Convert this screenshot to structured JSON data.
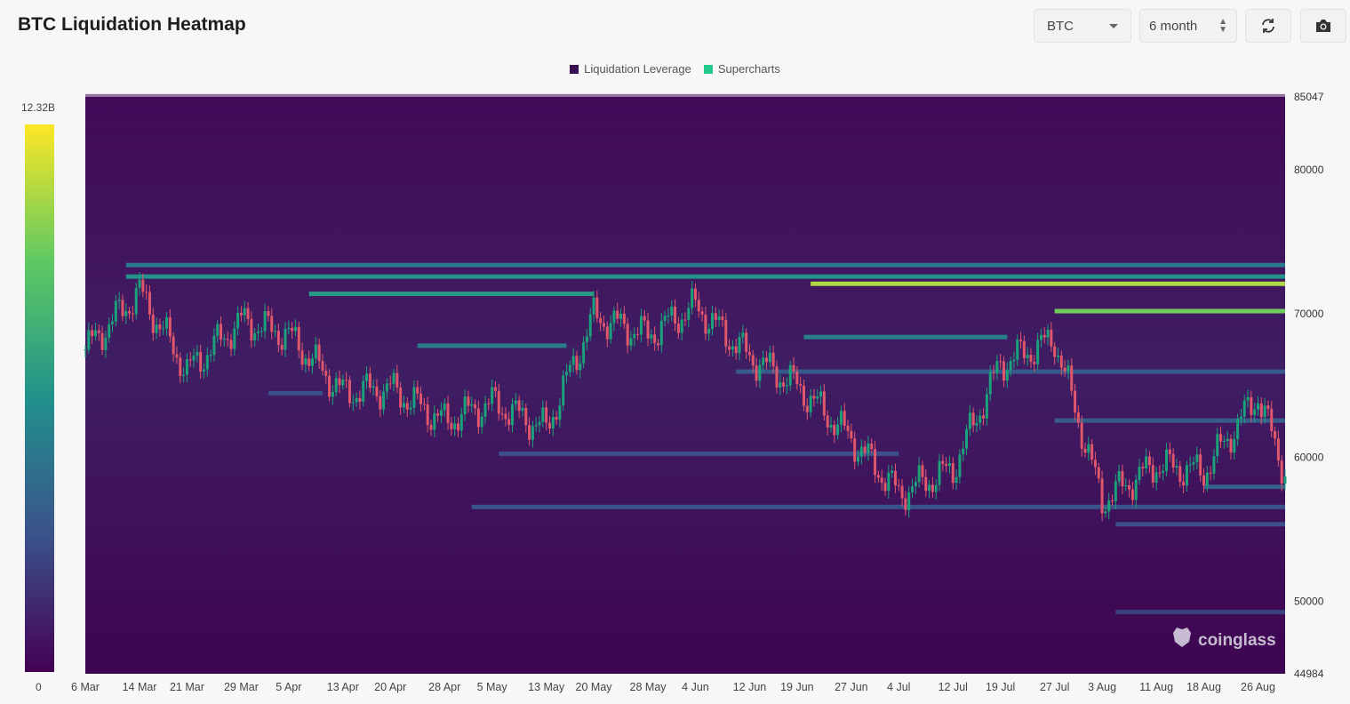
{
  "header": {
    "title": "BTC Liquidation Heatmap",
    "symbol_select": "BTC",
    "range_select": "6 month",
    "refresh_icon": "refresh-icon",
    "camera_icon": "camera-icon"
  },
  "legend": [
    {
      "label": "Liquidation Leverage",
      "color": "#3a0f52"
    },
    {
      "label": "Supercharts",
      "color": "#22c98a"
    }
  ],
  "color_scale": {
    "max_label": "12.32B",
    "min_label": "0"
  },
  "watermark": "coinglass",
  "chart_data": {
    "type": "heatmap",
    "title": "BTC Liquidation Heatmap",
    "ylim": [
      44984,
      85047
    ],
    "ytick_labels": [
      "85047",
      "80000",
      "70000",
      "60000",
      "50000",
      "44984"
    ],
    "yticks": [
      85047,
      80000,
      70000,
      60000,
      50000,
      44984
    ],
    "xtick_labels": [
      "6 Mar",
      "14 Mar",
      "21 Mar",
      "29 Mar",
      "5 Apr",
      "13 Apr",
      "20 Apr",
      "28 Apr",
      "5 May",
      "13 May",
      "20 May",
      "28 May",
      "4 Jun",
      "12 Jun",
      "19 Jun",
      "27 Jun",
      "4 Jul",
      "12 Jul",
      "19 Jul",
      "27 Jul",
      "3 Aug",
      "11 Aug",
      "18 Aug",
      "26 Aug"
    ],
    "colorscale": [
      "#440154",
      "#3b528b",
      "#21918c",
      "#5ec962",
      "#fde725"
    ],
    "heat_max": 12.32,
    "price_series": {
      "name": "Supercharts",
      "dates": [
        "6 Mar",
        "14 Mar",
        "21 Mar",
        "29 Mar",
        "5 Apr",
        "13 Apr",
        "20 Apr",
        "28 Apr",
        "5 May",
        "13 May",
        "20 May",
        "28 May",
        "4 Jun",
        "12 Jun",
        "19 Jun",
        "27 Jun",
        "4 Jul",
        "12 Jul",
        "19 Jul",
        "27 Jul",
        "3 Aug",
        "11 Aug",
        "18 Aug",
        "26 Aug",
        "30 Aug"
      ],
      "close": [
        67500,
        71500,
        66000,
        69500,
        68500,
        64500,
        64800,
        62500,
        63800,
        62000,
        69800,
        68500,
        70500,
        67000,
        65000,
        61300,
        57500,
        59200,
        66500,
        68200,
        57000,
        59500,
        59000,
        64300,
        58900
      ]
    },
    "liquidation_levels": [
      {
        "price": 72100,
        "start": "21 Jun",
        "end": "30 Aug",
        "intensity": 10.8
      },
      {
        "price": 72600,
        "start": "12 Mar",
        "end": "30 Aug",
        "intensity": 6.2
      },
      {
        "price": 73400,
        "start": "12 Mar",
        "end": "30 Aug",
        "intensity": 5.0
      },
      {
        "price": 70200,
        "start": "27 Jul",
        "end": "30 Aug",
        "intensity": 9.6
      },
      {
        "price": 71400,
        "start": "8 Apr",
        "end": "20 May",
        "intensity": 6.6
      },
      {
        "price": 68400,
        "start": "20 Jun",
        "end": "20 Jul",
        "intensity": 5.4
      },
      {
        "price": 67800,
        "start": "24 Apr",
        "end": "16 May",
        "intensity": 5.2
      },
      {
        "price": 66000,
        "start": "10 Jun",
        "end": "30 Aug",
        "intensity": 3.4
      },
      {
        "price": 64500,
        "start": "2 Apr",
        "end": "10 Apr",
        "intensity": 3.0
      },
      {
        "price": 62600,
        "start": "27 Jul",
        "end": "30 Aug",
        "intensity": 3.6
      },
      {
        "price": 60300,
        "start": "6 May",
        "end": "4 Jul",
        "intensity": 3.0
      },
      {
        "price": 58000,
        "start": "18 Aug",
        "end": "30 Aug",
        "intensity": 3.8
      },
      {
        "price": 56600,
        "start": "2 May",
        "end": "30 Aug",
        "intensity": 3.2
      },
      {
        "price": 55400,
        "start": "5 Aug",
        "end": "30 Aug",
        "intensity": 3.0
      },
      {
        "price": 49300,
        "start": "5 Aug",
        "end": "30 Aug",
        "intensity": 2.4
      }
    ]
  }
}
